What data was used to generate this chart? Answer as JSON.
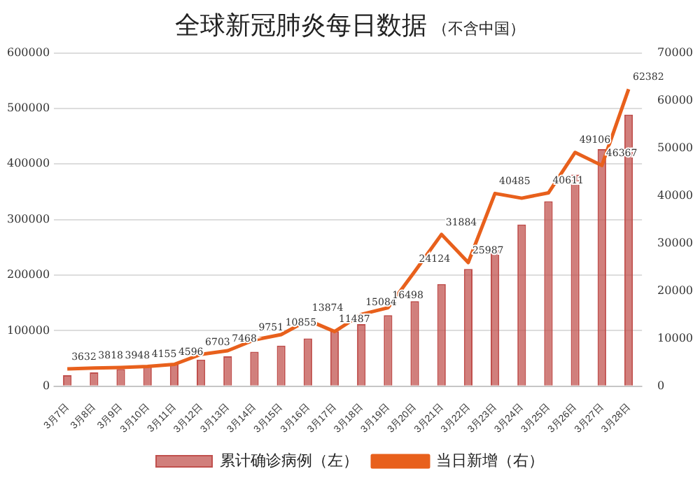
{
  "chart_data": {
    "type": "bar",
    "title": "全球新冠肺炎每日数据",
    "subtitle": "（不含中国）",
    "categories": [
      "3月7日",
      "3月8日",
      "3月9日",
      "3月10日",
      "3月11日",
      "3月12日",
      "3月13日",
      "3月14日",
      "3月15日",
      "3月16日",
      "3月17日",
      "3月18日",
      "3月19日",
      "3月20日",
      "3月21日",
      "3月22日",
      "3月23日",
      "3月24日",
      "3月25日",
      "3月26日",
      "3月27日",
      "3月28日"
    ],
    "series": [
      {
        "name": "累计确诊病例（左）",
        "color": "#c0504d",
        "values": [
          20000,
          25000,
          31000,
          36000,
          40000,
          48000,
          54000,
          62000,
          73000,
          86000,
          99000,
          112000,
          128000,
          153000,
          184000,
          211000,
          251000,
          291000,
          333000,
          381000,
          427000,
          489000
        ]
      },
      {
        "name": "当日新增（右）",
        "type": "line",
        "axis": "y2",
        "color": "#e8601c",
        "values": [
          3632,
          3818,
          3948,
          4155,
          4596,
          6703,
          7468,
          9751,
          10855,
          13874,
          11487,
          15084,
          16498,
          24124,
          31884,
          25987,
          40485,
          39500,
          40611,
          49106,
          46367,
          62382
        ],
        "value_labels": [
          "3632",
          "3818",
          "3948",
          "4155",
          "4596",
          "6703",
          "7468",
          "9751",
          "10855",
          "13874",
          "11487",
          "15084",
          "16498",
          "24124",
          "31884",
          "25987",
          "40485",
          null,
          "40611",
          "49106",
          "46367",
          "62382"
        ]
      }
    ],
    "ylim": [
      0,
      600000
    ],
    "yticks": [
      0,
      100000,
      200000,
      300000,
      400000,
      500000,
      600000
    ],
    "y2lim": [
      0,
      70000
    ],
    "y2ticks": [
      0,
      10000,
      20000,
      30000,
      40000,
      50000,
      60000,
      70000
    ],
    "grid": "y",
    "legend": "bottom",
    "marker": "none",
    "line_style": "solid"
  }
}
